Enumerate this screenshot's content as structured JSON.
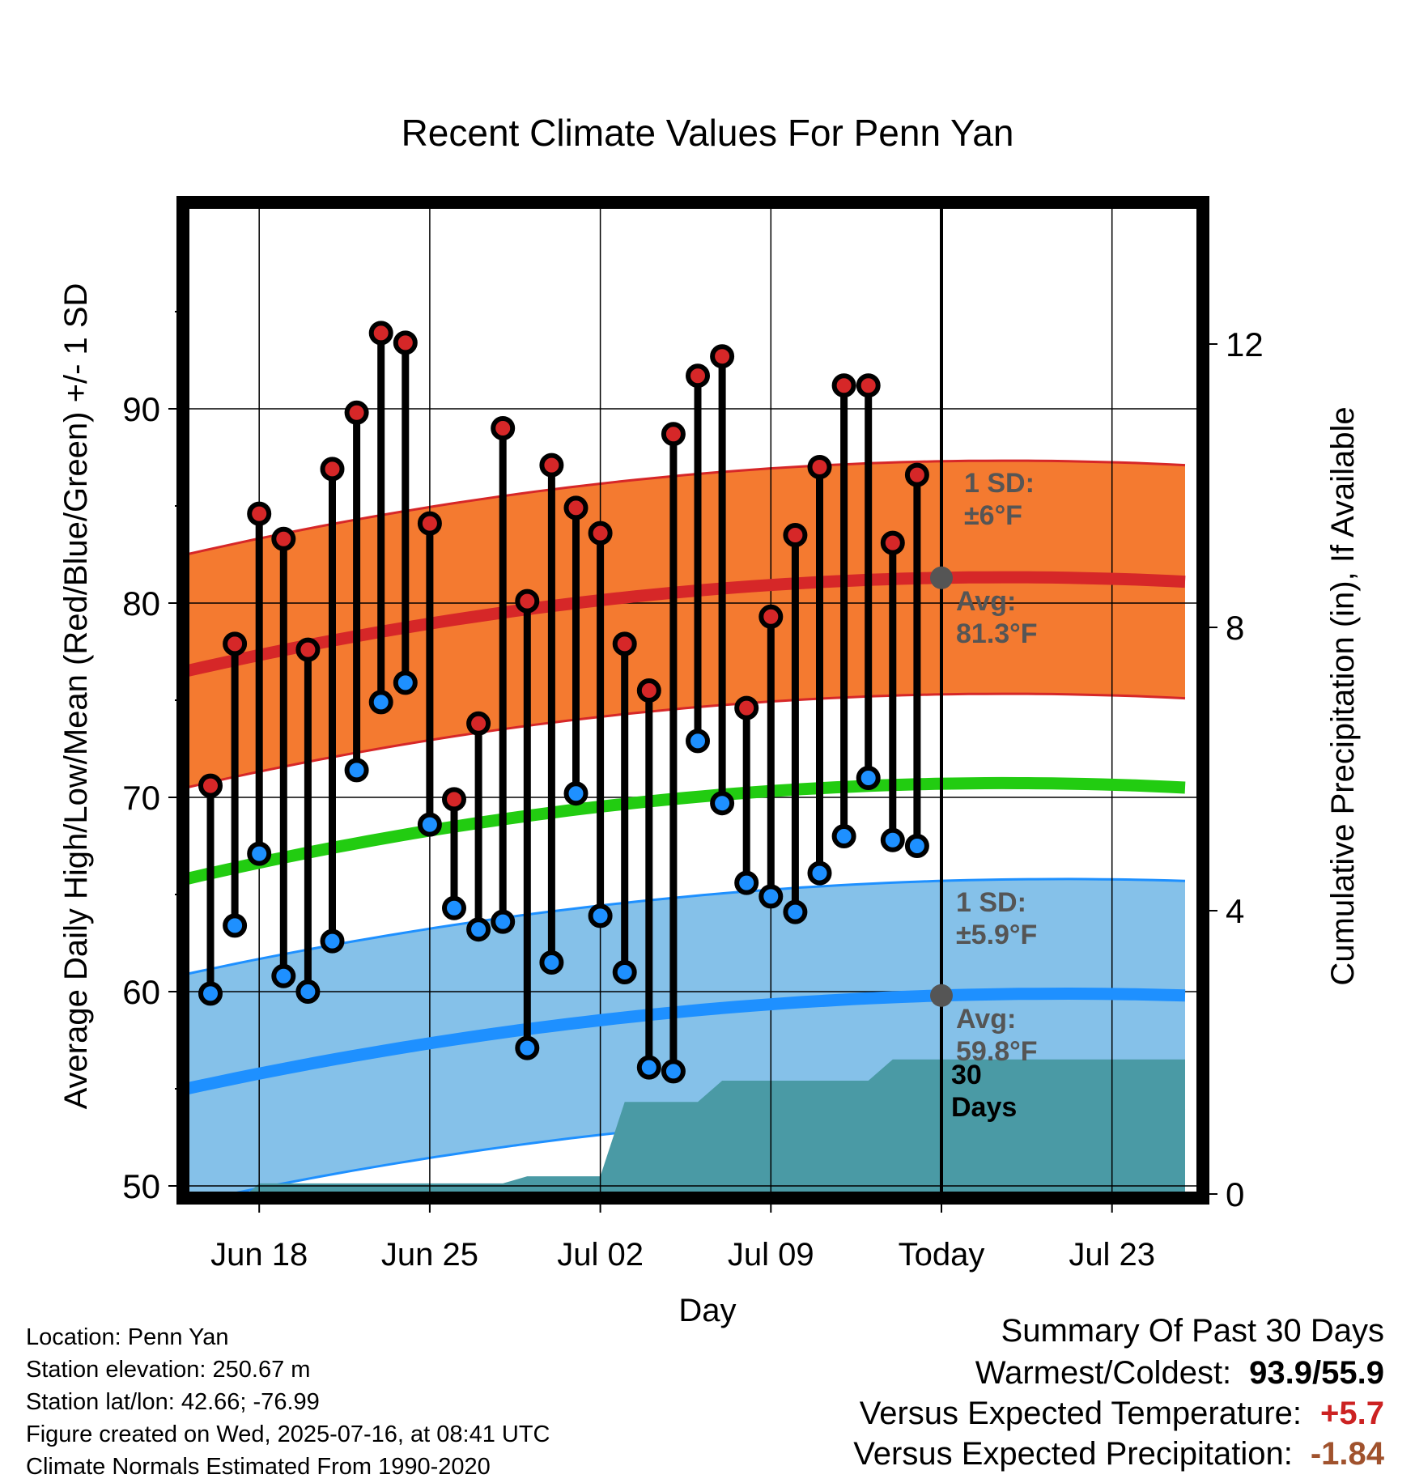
{
  "chart_data": {
    "type": "line",
    "title": "Recent Climate Values For Penn Yan",
    "xlabel": "Day",
    "ylabel": "Average Daily High/Low/Mean (Red/Blue/Green) +/- 1 SD",
    "y2label": "Cumulative Precipitation (in), If Available",
    "ylim": [
      48,
      99
    ],
    "y2lim": [
      0,
      16.5
    ],
    "x_tick_labels": [
      "Jun 18",
      "Jun 25",
      "Jul 02",
      "Jul 09",
      "Today",
      "Jul 23"
    ],
    "x_tick_days": [
      3,
      10,
      17,
      24,
      31,
      38
    ],
    "y_ticks": [
      50,
      60,
      70,
      80,
      90
    ],
    "y2_ticks": [
      0,
      4,
      8,
      12
    ],
    "grid": true,
    "today_day": 31,
    "days": [
      1,
      2,
      3,
      4,
      5,
      6,
      7,
      8,
      9,
      10,
      11,
      12,
      13,
      14,
      15,
      16,
      17,
      18,
      19,
      20,
      21,
      22,
      23,
      24,
      25,
      26,
      27,
      28,
      29,
      30
    ],
    "series": [
      {
        "name": "High",
        "color": "#d62728",
        "values": [
          70.6,
          77.9,
          84.6,
          83.3,
          77.6,
          86.9,
          89.8,
          93.9,
          93.4,
          84.1,
          69.9,
          73.8,
          89.0,
          80.1,
          87.1,
          84.9,
          83.6,
          77.9,
          75.5,
          88.7,
          91.7,
          92.7,
          74.6,
          79.3,
          83.5,
          87.0,
          91.2,
          91.2,
          83.1,
          86.6
        ]
      },
      {
        "name": "Low",
        "color": "#1e90ff",
        "values": [
          59.9,
          63.4,
          67.1,
          60.8,
          60.0,
          62.6,
          71.4,
          74.9,
          75.9,
          68.6,
          64.3,
          63.2,
          63.6,
          57.1,
          61.5,
          70.2,
          63.9,
          61.0,
          56.1,
          55.9,
          72.9,
          69.7,
          65.6,
          64.9,
          64.1,
          66.1,
          68.0,
          71.0,
          67.8,
          67.5
        ]
      }
    ],
    "normals": {
      "day_start": 0,
      "day_end": 41,
      "high_avg": [
        76.5,
        81.3,
        81.1
      ],
      "high_sd": 6,
      "low_avg": [
        55.0,
        59.8,
        59.8
      ],
      "low_sd": 5.9,
      "mean_avg": [
        65.8,
        70.7,
        70.5
      ]
    },
    "precip_cumulative": {
      "days": [
        0,
        2.5,
        3,
        13,
        14,
        17,
        18,
        21,
        22,
        26,
        27,
        28,
        29,
        30,
        41
      ],
      "values": [
        0,
        0.0,
        0.15,
        0.15,
        0.25,
        0.25,
        1.3,
        1.3,
        1.6,
        1.6,
        1.6,
        1.6,
        1.9,
        1.9,
        1.9
      ]
    },
    "annotations": [
      {
        "text_line1": "1 SD:",
        "text_line2": "±6°F",
        "band": "high"
      },
      {
        "text_line1": "Avg:",
        "text_line2": "81.3°F",
        "band": "high"
      },
      {
        "text_line1": "1 SD:",
        "text_line2": "±5.9°F",
        "band": "low"
      },
      {
        "text_line1": "Avg:",
        "text_line2": "59.8°F",
        "band": "low"
      },
      {
        "text_line1": "30",
        "text_line2": "Days",
        "band": "precip"
      }
    ],
    "colors": {
      "high_band": "#f47a30",
      "high_line": "#d62728",
      "low_band": "#85c1e9",
      "low_line": "#1e90ff",
      "mean_line": "#22cc11",
      "precip": "#4a9aa5",
      "annot": "#555555"
    }
  },
  "footer": {
    "location": "Location: Penn Yan",
    "elevation": "Station elevation: 250.67 m",
    "latlon": "Station lat/lon: 42.66; -76.99",
    "created": "Figure created on Wed, 2025-07-16, at 08:41 UTC",
    "normals": "Climate Normals Estimated From 1990-2020"
  },
  "summary": {
    "title": "Summary Of Past 30 Days",
    "warm_label": "Warmest/Coldest:",
    "warm_value": "93.9/55.9",
    "temp_label": "Versus Expected Temperature:",
    "temp_value": "+5.7",
    "temp_color": "#cc2222",
    "precip_label": "Versus Expected Precipitation:",
    "precip_value": "-1.84",
    "precip_color": "#a0522d"
  }
}
